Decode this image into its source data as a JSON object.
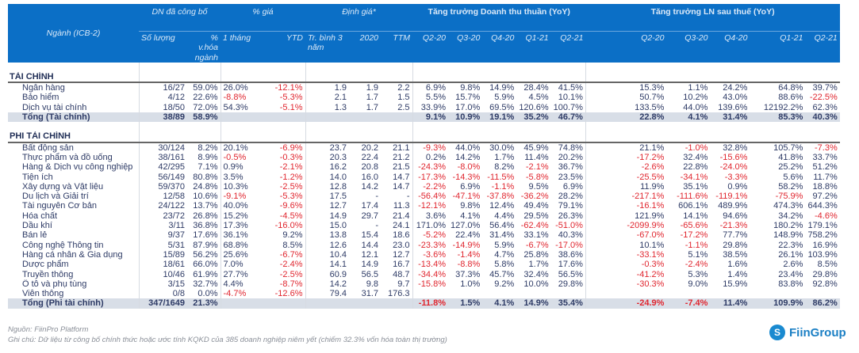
{
  "header": {
    "sector": "Ngành (ICB-2)",
    "groups": {
      "published": "DN đã công bố",
      "price": "% giá",
      "valuation": "Định giá*",
      "revenue": "Tăng trưởng Doanh thu thuần (YoY)",
      "profit": "Tăng trưởng LN sau thuế (YoY)"
    },
    "sub": [
      "Số lượng",
      "% v.hóa ngành",
      "1 tháng",
      "YTD",
      "Tr. bình 3 năm",
      "2020",
      "TTM",
      "Q2-20",
      "Q3-20",
      "Q4-20",
      "Q1-21",
      "Q2-21",
      "Q2-20",
      "Q3-20",
      "Q4-20",
      "Q1-21",
      "Q2-21"
    ]
  },
  "sections": [
    {
      "title": "TÀI CHÍNH",
      "rows": [
        [
          "Ngân hàng",
          "16/27",
          "59.0%",
          "26.0%",
          "-12.1%",
          "1.9",
          "1.9",
          "2.2",
          "6.9%",
          "9.8%",
          "14.9%",
          "28.4%",
          "41.5%",
          "15.3%",
          "1.1%",
          "24.2%",
          "64.8%",
          "39.7%"
        ],
        [
          "Bảo hiểm",
          "4/12",
          "22.6%",
          "-8.8%",
          "-5.3%",
          "2.1",
          "1.7",
          "1.5",
          "5.5%",
          "15.7%",
          "5.9%",
          "4.5%",
          "10.1%",
          "50.7%",
          "10.2%",
          "43.0%",
          "88.6%",
          "-22.5%"
        ],
        [
          "Dịch vụ tài chính",
          "18/50",
          "72.0%",
          "54.3%",
          "-5.1%",
          "1.3",
          "1.7",
          "2.5",
          "33.9%",
          "17.0%",
          "69.5%",
          "120.6%",
          "100.7%",
          "133.5%",
          "44.0%",
          "139.6%",
          "12192.2%",
          "62.3%"
        ]
      ],
      "total": [
        "Tổng (Tài chính)",
        "38/89",
        "58.9%",
        "",
        "",
        "",
        "",
        "",
        "9.1%",
        "10.9%",
        "19.1%",
        "35.2%",
        "46.7%",
        "22.8%",
        "4.1%",
        "31.4%",
        "85.3%",
        "40.3%"
      ]
    },
    {
      "title": "PHI TÀI CHÍNH",
      "rows": [
        [
          "Bất động sản",
          "30/124",
          "8.2%",
          "20.1%",
          "-6.9%",
          "23.7",
          "20.2",
          "21.1",
          "-9.3%",
          "44.0%",
          "30.0%",
          "45.9%",
          "74.8%",
          "21.1%",
          "-1.0%",
          "32.8%",
          "105.7%",
          "-7.3%"
        ],
        [
          "Thực phẩm và đồ uống",
          "38/161",
          "8.9%",
          "-0.5%",
          "-0.3%",
          "20.3",
          "22.4",
          "21.2",
          "0.2%",
          "14.2%",
          "1.7%",
          "11.4%",
          "20.2%",
          "-17.2%",
          "32.4%",
          "-15.6%",
          "41.8%",
          "33.7%"
        ],
        [
          "Hàng & Dịch vụ công nghiệp",
          "42/295",
          "7.1%",
          "0.9%",
          "-2.1%",
          "16.2",
          "20.8",
          "21.5",
          "-24.3%",
          "-8.0%",
          "8.2%",
          "-2.1%",
          "36.7%",
          "-2.6%",
          "22.8%",
          "-24.0%",
          "25.2%",
          "51.2%"
        ],
        [
          "Tiện ích",
          "56/149",
          "80.8%",
          "3.5%",
          "-1.2%",
          "14.0",
          "16.0",
          "14.7",
          "-17.3%",
          "-14.3%",
          "-11.5%",
          "-5.8%",
          "23.5%",
          "-25.5%",
          "-34.1%",
          "-3.3%",
          "5.6%",
          "11.7%"
        ],
        [
          "Xây dựng và Vật liệu",
          "59/370",
          "24.8%",
          "10.3%",
          "-2.5%",
          "12.8",
          "14.2",
          "14.7",
          "-2.2%",
          "6.9%",
          "-1.1%",
          "9.5%",
          "6.9%",
          "11.9%",
          "35.1%",
          "0.9%",
          "58.2%",
          "18.8%"
        ],
        [
          "Du lịch và Giải trí",
          "12/58",
          "10.6%",
          "-9.1%",
          "-5.3%",
          "17.5",
          "-",
          "-",
          "-56.4%",
          "-47.1%",
          "-37.8%",
          "-36.2%",
          "28.2%",
          "-217.1%",
          "-111.6%",
          "-119.1%",
          "-75.9%",
          "97.2%"
        ],
        [
          "Tài nguyên Cơ bản",
          "24/122",
          "13.7%",
          "40.0%",
          "-9.6%",
          "12.7",
          "17.4",
          "11.3",
          "-12.1%",
          "9.8%",
          "12.4%",
          "49.4%",
          "79.1%",
          "-16.1%",
          "606.1%",
          "489.9%",
          "474.3%",
          "644.3%"
        ],
        [
          "Hóa chất",
          "23/72",
          "26.8%",
          "15.2%",
          "-4.5%",
          "14.9",
          "29.7",
          "21.4",
          "3.6%",
          "4.1%",
          "4.4%",
          "29.5%",
          "26.3%",
          "121.9%",
          "14.1%",
          "94.6%",
          "34.2%",
          "-4.6%"
        ],
        [
          "Dầu khí",
          "3/11",
          "36.8%",
          "17.3%",
          "-16.0%",
          "15.0",
          "-",
          "24.1",
          "171.0%",
          "127.0%",
          "56.4%",
          "-62.4%",
          "-51.0%",
          "-2099.9%",
          "-65.6%",
          "-21.3%",
          "180.2%",
          "179.1%"
        ],
        [
          "Bán lẻ",
          "9/37",
          "17.6%",
          "36.1%",
          "9.2%",
          "13.8",
          "15.4",
          "18.6",
          "-5.2%",
          "22.4%",
          "31.4%",
          "33.1%",
          "40.3%",
          "-67.0%",
          "-17.2%",
          "77.7%",
          "148.9%",
          "758.2%"
        ],
        [
          "Công nghệ Thông tin",
          "5/31",
          "87.9%",
          "68.8%",
          "8.5%",
          "12.6",
          "14.4",
          "23.0",
          "-23.3%",
          "-14.9%",
          "5.9%",
          "-6.7%",
          "-17.0%",
          "10.1%",
          "-1.1%",
          "29.8%",
          "22.3%",
          "16.9%"
        ],
        [
          "Hàng cá nhân & Gia dụng",
          "15/89",
          "56.2%",
          "25.6%",
          "-6.7%",
          "10.4",
          "12.1",
          "12.7",
          "-3.6%",
          "-1.4%",
          "4.7%",
          "25.8%",
          "38.6%",
          "-33.1%",
          "5.1%",
          "38.5%",
          "26.1%",
          "103.9%"
        ],
        [
          "Dược phẩm",
          "18/61",
          "66.0%",
          "7.0%",
          "-2.4%",
          "14.1",
          "14.9",
          "16.7",
          "-13.4%",
          "-8.8%",
          "5.8%",
          "1.7%",
          "17.6%",
          "-0.3%",
          "-2.4%",
          "1.6%",
          "2.6%",
          "8.5%"
        ],
        [
          "Truyền thông",
          "10/46",
          "61.9%",
          "27.7%",
          "-2.5%",
          "60.9",
          "56.5",
          "48.7",
          "-34.4%",
          "37.3%",
          "45.7%",
          "32.4%",
          "56.5%",
          "-41.2%",
          "5.3%",
          "1.4%",
          "23.4%",
          "29.8%"
        ],
        [
          "Ô tô và phụ tùng",
          "3/15",
          "32.7%",
          "4.4%",
          "-8.7%",
          "14.2",
          "9.8",
          "9.7",
          "-15.8%",
          "1.0%",
          "9.2%",
          "10.0%",
          "29.8%",
          "-30.3%",
          "9.0%",
          "15.9%",
          "83.8%",
          "92.8%"
        ],
        [
          "Viễn thông",
          "0/8",
          "0.0%",
          "-4.7%",
          "-12.6%",
          "79.4",
          "31.7",
          "176.3",
          "",
          "",
          "",
          "",
          "",
          "",
          "",
          "",
          "",
          ""
        ]
      ],
      "total": [
        "Tổng (Phi tài chính)",
        "347/1649",
        "21.3%",
        "",
        "",
        "",
        "",
        "",
        "-11.8%",
        "1.5%",
        "4.1%",
        "14.9%",
        "35.4%",
        "-24.9%",
        "-7.4%",
        "11.4%",
        "109.9%",
        "86.2%"
      ]
    }
  ],
  "footer": {
    "source": "Nguồn: FiinPro Platform",
    "note": "Ghi chú: Dữ liệu từ công bố chính thức hoặc ước tính KQKD của 385 doanh nghiệp niêm yết (chiếm 32.3% vốn hóa toàn thị trường)"
  },
  "logo": {
    "text": "FiinGroup"
  },
  "colors": {
    "header": "#0b6fc6",
    "negative": "#e0262f",
    "text": "#2e3b66",
    "total_bg": "#d8dee7"
  }
}
